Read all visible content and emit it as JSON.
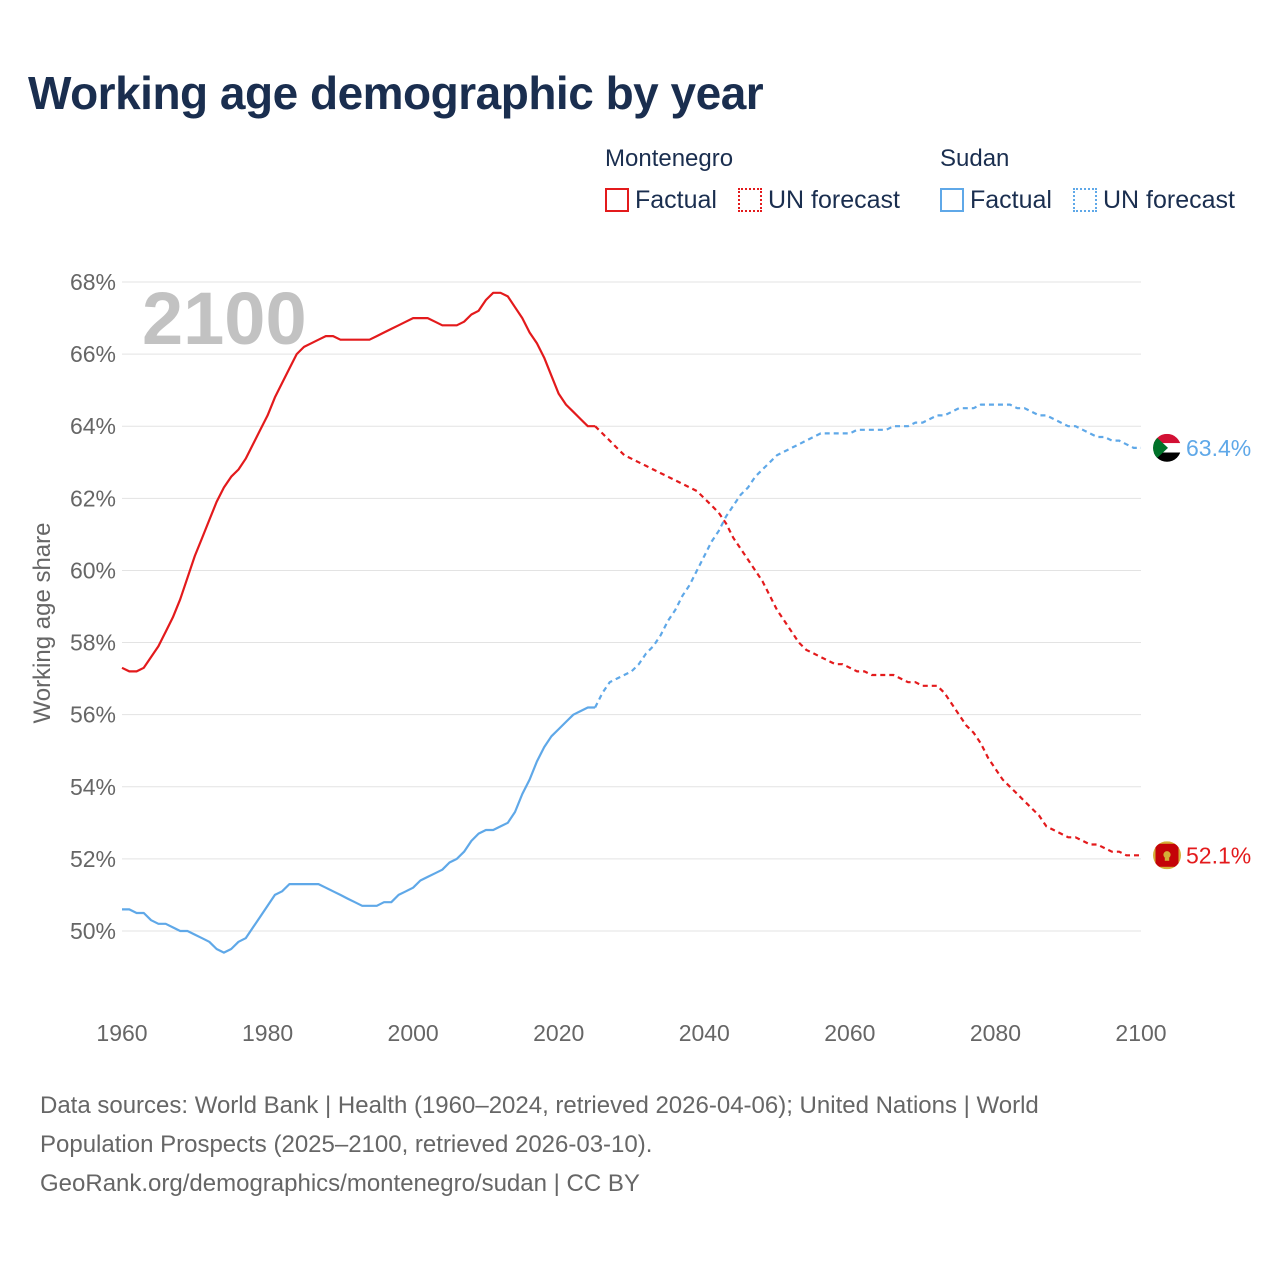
{
  "title": "Working age demographic by year",
  "legend": {
    "groups": [
      {
        "country": "Montenegro",
        "color": "#e31a1c",
        "factual_label": "Factual",
        "forecast_label": "UN forecast"
      },
      {
        "country": "Sudan",
        "color": "#5fa8e8",
        "factual_label": "Factual",
        "forecast_label": "UN forecast"
      }
    ]
  },
  "footer": {
    "line1": "Data sources: World Bank | Health (1960–2024, retrieved 2026-04-06); United Nations | World",
    "line2": "Population Prospects (2025–2100, retrieved 2026-03-10).",
    "line3": "GeoRank.org/demographics/montenegro/sudan | CC BY"
  },
  "chart_data": {
    "type": "line",
    "title": "Working age demographic by year",
    "ylabel": "Working age share",
    "xlabel": "",
    "year_watermark": "2100",
    "xlim": [
      1960,
      2100
    ],
    "ylim": [
      48,
      68
    ],
    "x_ticks": [
      1960,
      1980,
      2000,
      2020,
      2040,
      2060,
      2080,
      2100
    ],
    "x_tick_labels": [
      "1960",
      "1980",
      "2000",
      "2020",
      "2040",
      "2060",
      "2080",
      "2100"
    ],
    "y_ticks": [
      50,
      52,
      54,
      56,
      58,
      60,
      62,
      64,
      66,
      68
    ],
    "y_tick_labels": [
      "50%",
      "52%",
      "54%",
      "56%",
      "58%",
      "60%",
      "62%",
      "64%",
      "66%",
      "68%"
    ],
    "grid": true,
    "factual_end_year": 2025,
    "series": [
      {
        "name": "Montenegro",
        "color": "#e31a1c",
        "end_label": "52.1%",
        "flag": "montenegro-flag",
        "points": [
          [
            1960,
            57.3
          ],
          [
            1961,
            57.2
          ],
          [
            1962,
            57.2
          ],
          [
            1963,
            57.3
          ],
          [
            1964,
            57.6
          ],
          [
            1965,
            57.9
          ],
          [
            1966,
            58.3
          ],
          [
            1967,
            58.7
          ],
          [
            1968,
            59.2
          ],
          [
            1969,
            59.8
          ],
          [
            1970,
            60.4
          ],
          [
            1971,
            60.9
          ],
          [
            1972,
            61.4
          ],
          [
            1973,
            61.9
          ],
          [
            1974,
            62.3
          ],
          [
            1975,
            62.6
          ],
          [
            1976,
            62.8
          ],
          [
            1977,
            63.1
          ],
          [
            1978,
            63.5
          ],
          [
            1979,
            63.9
          ],
          [
            1980,
            64.3
          ],
          [
            1981,
            64.8
          ],
          [
            1982,
            65.2
          ],
          [
            1983,
            65.6
          ],
          [
            1984,
            66.0
          ],
          [
            1985,
            66.2
          ],
          [
            1986,
            66.3
          ],
          [
            1987,
            66.4
          ],
          [
            1988,
            66.5
          ],
          [
            1989,
            66.5
          ],
          [
            1990,
            66.4
          ],
          [
            1991,
            66.4
          ],
          [
            1992,
            66.4
          ],
          [
            1993,
            66.4
          ],
          [
            1994,
            66.4
          ],
          [
            1995,
            66.5
          ],
          [
            1996,
            66.6
          ],
          [
            1997,
            66.7
          ],
          [
            1998,
            66.8
          ],
          [
            1999,
            66.9
          ],
          [
            2000,
            67.0
          ],
          [
            2001,
            67.0
          ],
          [
            2002,
            67.0
          ],
          [
            2003,
            66.9
          ],
          [
            2004,
            66.8
          ],
          [
            2005,
            66.8
          ],
          [
            2006,
            66.8
          ],
          [
            2007,
            66.9
          ],
          [
            2008,
            67.1
          ],
          [
            2009,
            67.2
          ],
          [
            2010,
            67.5
          ],
          [
            2011,
            67.7
          ],
          [
            2012,
            67.7
          ],
          [
            2013,
            67.6
          ],
          [
            2014,
            67.3
          ],
          [
            2015,
            67.0
          ],
          [
            2016,
            66.6
          ],
          [
            2017,
            66.3
          ],
          [
            2018,
            65.9
          ],
          [
            2019,
            65.4
          ],
          [
            2020,
            64.9
          ],
          [
            2021,
            64.6
          ],
          [
            2022,
            64.4
          ],
          [
            2023,
            64.2
          ],
          [
            2024,
            64.0
          ],
          [
            2025,
            64.0
          ],
          [
            2026,
            63.8
          ],
          [
            2027,
            63.6
          ],
          [
            2028,
            63.4
          ],
          [
            2029,
            63.2
          ],
          [
            2030,
            63.1
          ],
          [
            2031,
            63.0
          ],
          [
            2032,
            62.9
          ],
          [
            2033,
            62.8
          ],
          [
            2034,
            62.7
          ],
          [
            2035,
            62.6
          ],
          [
            2036,
            62.5
          ],
          [
            2037,
            62.4
          ],
          [
            2038,
            62.3
          ],
          [
            2039,
            62.2
          ],
          [
            2040,
            62.0
          ],
          [
            2041,
            61.8
          ],
          [
            2042,
            61.6
          ],
          [
            2043,
            61.3
          ],
          [
            2044,
            60.9
          ],
          [
            2045,
            60.6
          ],
          [
            2046,
            60.3
          ],
          [
            2047,
            60.0
          ],
          [
            2048,
            59.7
          ],
          [
            2049,
            59.3
          ],
          [
            2050,
            58.9
          ],
          [
            2051,
            58.6
          ],
          [
            2052,
            58.3
          ],
          [
            2053,
            58.0
          ],
          [
            2054,
            57.8
          ],
          [
            2055,
            57.7
          ],
          [
            2056,
            57.6
          ],
          [
            2057,
            57.5
          ],
          [
            2058,
            57.4
          ],
          [
            2059,
            57.4
          ],
          [
            2060,
            57.3
          ],
          [
            2061,
            57.2
          ],
          [
            2062,
            57.2
          ],
          [
            2063,
            57.1
          ],
          [
            2064,
            57.1
          ],
          [
            2065,
            57.1
          ],
          [
            2066,
            57.1
          ],
          [
            2067,
            57.0
          ],
          [
            2068,
            56.9
          ],
          [
            2069,
            56.9
          ],
          [
            2070,
            56.8
          ],
          [
            2071,
            56.8
          ],
          [
            2072,
            56.8
          ],
          [
            2073,
            56.6
          ],
          [
            2074,
            56.3
          ],
          [
            2075,
            56.0
          ],
          [
            2076,
            55.7
          ],
          [
            2077,
            55.5
          ],
          [
            2078,
            55.2
          ],
          [
            2079,
            54.8
          ],
          [
            2080,
            54.5
          ],
          [
            2081,
            54.2
          ],
          [
            2082,
            54.0
          ],
          [
            2083,
            53.8
          ],
          [
            2084,
            53.6
          ],
          [
            2085,
            53.4
          ],
          [
            2086,
            53.2
          ],
          [
            2087,
            52.9
          ],
          [
            2088,
            52.8
          ],
          [
            2089,
            52.7
          ],
          [
            2090,
            52.6
          ],
          [
            2091,
            52.6
          ],
          [
            2092,
            52.5
          ],
          [
            2093,
            52.4
          ],
          [
            2094,
            52.4
          ],
          [
            2095,
            52.3
          ],
          [
            2096,
            52.2
          ],
          [
            2097,
            52.2
          ],
          [
            2098,
            52.1
          ],
          [
            2099,
            52.1
          ],
          [
            2100,
            52.1
          ]
        ]
      },
      {
        "name": "Sudan",
        "color": "#5fa8e8",
        "end_label": "63.4%",
        "flag": "sudan-flag",
        "points": [
          [
            1960,
            50.6
          ],
          [
            1961,
            50.6
          ],
          [
            1962,
            50.5
          ],
          [
            1963,
            50.5
          ],
          [
            1964,
            50.3
          ],
          [
            1965,
            50.2
          ],
          [
            1966,
            50.2
          ],
          [
            1967,
            50.1
          ],
          [
            1968,
            50.0
          ],
          [
            1969,
            50.0
          ],
          [
            1970,
            49.9
          ],
          [
            1971,
            49.8
          ],
          [
            1972,
            49.7
          ],
          [
            1973,
            49.5
          ],
          [
            1974,
            49.4
          ],
          [
            1975,
            49.5
          ],
          [
            1976,
            49.7
          ],
          [
            1977,
            49.8
          ],
          [
            1978,
            50.1
          ],
          [
            1979,
            50.4
          ],
          [
            1980,
            50.7
          ],
          [
            1981,
            51.0
          ],
          [
            1982,
            51.1
          ],
          [
            1983,
            51.3
          ],
          [
            1984,
            51.3
          ],
          [
            1985,
            51.3
          ],
          [
            1986,
            51.3
          ],
          [
            1987,
            51.3
          ],
          [
            1988,
            51.2
          ],
          [
            1989,
            51.1
          ],
          [
            1990,
            51.0
          ],
          [
            1991,
            50.9
          ],
          [
            1992,
            50.8
          ],
          [
            1993,
            50.7
          ],
          [
            1994,
            50.7
          ],
          [
            1995,
            50.7
          ],
          [
            1996,
            50.8
          ],
          [
            1997,
            50.8
          ],
          [
            1998,
            51.0
          ],
          [
            1999,
            51.1
          ],
          [
            2000,
            51.2
          ],
          [
            2001,
            51.4
          ],
          [
            2002,
            51.5
          ],
          [
            2003,
            51.6
          ],
          [
            2004,
            51.7
          ],
          [
            2005,
            51.9
          ],
          [
            2006,
            52.0
          ],
          [
            2007,
            52.2
          ],
          [
            2008,
            52.5
          ],
          [
            2009,
            52.7
          ],
          [
            2010,
            52.8
          ],
          [
            2011,
            52.8
          ],
          [
            2012,
            52.9
          ],
          [
            2013,
            53.0
          ],
          [
            2014,
            53.3
          ],
          [
            2015,
            53.8
          ],
          [
            2016,
            54.2
          ],
          [
            2017,
            54.7
          ],
          [
            2018,
            55.1
          ],
          [
            2019,
            55.4
          ],
          [
            2020,
            55.6
          ],
          [
            2021,
            55.8
          ],
          [
            2022,
            56.0
          ],
          [
            2023,
            56.1
          ],
          [
            2024,
            56.2
          ],
          [
            2025,
            56.2
          ],
          [
            2026,
            56.6
          ],
          [
            2027,
            56.9
          ],
          [
            2028,
            57.0
          ],
          [
            2029,
            57.1
          ],
          [
            2030,
            57.2
          ],
          [
            2031,
            57.4
          ],
          [
            2032,
            57.7
          ],
          [
            2033,
            57.9
          ],
          [
            2034,
            58.2
          ],
          [
            2035,
            58.6
          ],
          [
            2036,
            58.9
          ],
          [
            2037,
            59.3
          ],
          [
            2038,
            59.6
          ],
          [
            2039,
            60.0
          ],
          [
            2040,
            60.4
          ],
          [
            2041,
            60.8
          ],
          [
            2042,
            61.1
          ],
          [
            2043,
            61.5
          ],
          [
            2044,
            61.8
          ],
          [
            2045,
            62.1
          ],
          [
            2046,
            62.3
          ],
          [
            2047,
            62.6
          ],
          [
            2048,
            62.8
          ],
          [
            2049,
            63.0
          ],
          [
            2050,
            63.2
          ],
          [
            2051,
            63.3
          ],
          [
            2052,
            63.4
          ],
          [
            2053,
            63.5
          ],
          [
            2054,
            63.6
          ],
          [
            2055,
            63.7
          ],
          [
            2056,
            63.8
          ],
          [
            2057,
            63.8
          ],
          [
            2058,
            63.8
          ],
          [
            2059,
            63.8
          ],
          [
            2060,
            63.8
          ],
          [
            2061,
            63.9
          ],
          [
            2062,
            63.9
          ],
          [
            2063,
            63.9
          ],
          [
            2064,
            63.9
          ],
          [
            2065,
            63.9
          ],
          [
            2066,
            64.0
          ],
          [
            2067,
            64.0
          ],
          [
            2068,
            64.0
          ],
          [
            2069,
            64.1
          ],
          [
            2070,
            64.1
          ],
          [
            2071,
            64.2
          ],
          [
            2072,
            64.3
          ],
          [
            2073,
            64.3
          ],
          [
            2074,
            64.4
          ],
          [
            2075,
            64.5
          ],
          [
            2076,
            64.5
          ],
          [
            2077,
            64.5
          ],
          [
            2078,
            64.6
          ],
          [
            2079,
            64.6
          ],
          [
            2080,
            64.6
          ],
          [
            2081,
            64.6
          ],
          [
            2082,
            64.6
          ],
          [
            2083,
            64.5
          ],
          [
            2084,
            64.5
          ],
          [
            2085,
            64.4
          ],
          [
            2086,
            64.3
          ],
          [
            2087,
            64.3
          ],
          [
            2088,
            64.2
          ],
          [
            2089,
            64.1
          ],
          [
            2090,
            64.0
          ],
          [
            2091,
            64.0
          ],
          [
            2092,
            63.9
          ],
          [
            2093,
            63.8
          ],
          [
            2094,
            63.7
          ],
          [
            2095,
            63.7
          ],
          [
            2096,
            63.6
          ],
          [
            2097,
            63.6
          ],
          [
            2098,
            63.5
          ],
          [
            2099,
            63.4
          ],
          [
            2100,
            63.4
          ]
        ]
      }
    ]
  }
}
